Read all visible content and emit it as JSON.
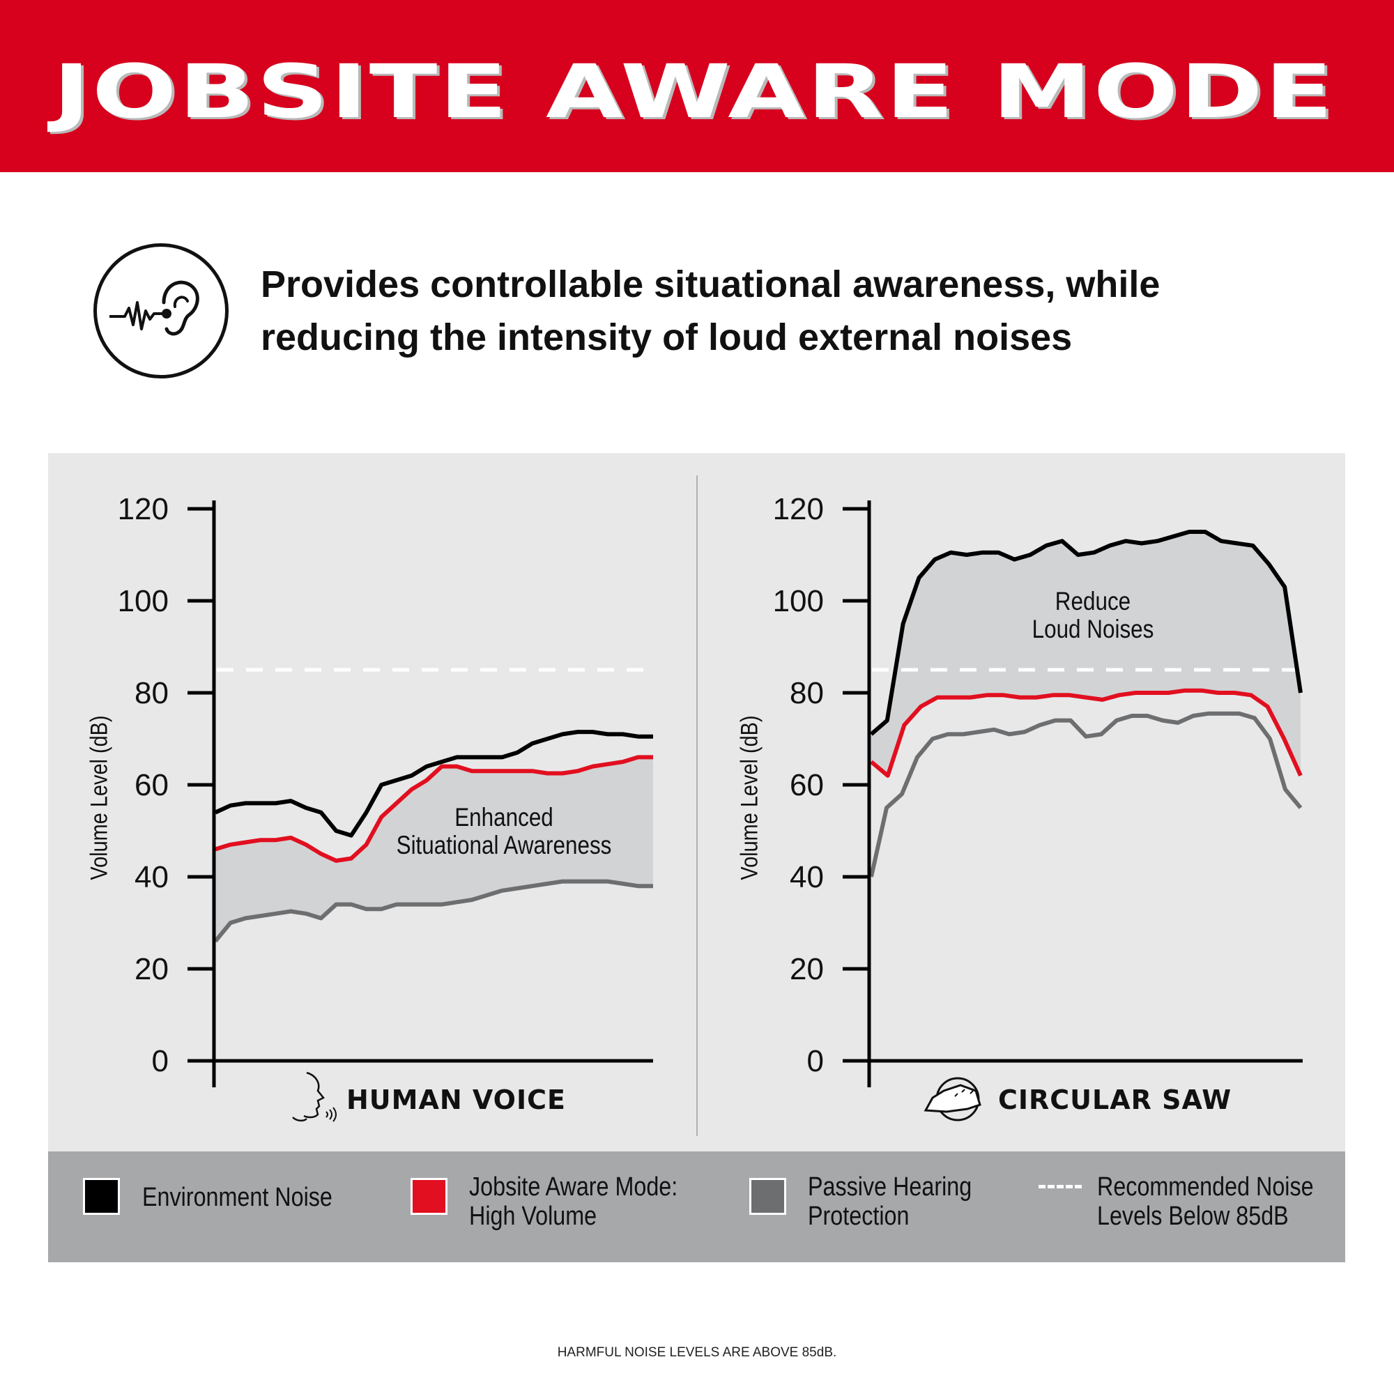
{
  "header": {
    "title": "JOBSITE AWARE MODE",
    "background": "#d7001d"
  },
  "intro": {
    "icon": "ear-sound-wave-icon",
    "lines": [
      "Provides controllable situational awareness, while",
      "reducing the intensity of loud external noises"
    ]
  },
  "chart_data": [
    {
      "type": "line",
      "category_label": "HUMAN VOICE",
      "category_icon": "talking-face-icon",
      "ylabel": "Volume Level (dB)",
      "ylim": [
        0,
        120
      ],
      "yticks": [
        "0",
        "20",
        "40",
        "60",
        "80",
        "100",
        "120"
      ],
      "annotation": [
        "Enhanced",
        "Situational Awareness"
      ],
      "shaded_between": [
        "Jobsite Aware Mode: High Volume",
        "Passive Hearing Protection"
      ],
      "threshold": 85,
      "series": [
        {
          "name": "Environment Noise",
          "color": "#000000",
          "values": [
            54,
            55.5,
            56,
            56,
            56,
            56.5,
            55,
            54,
            50,
            49,
            54,
            60,
            61,
            62,
            64,
            65,
            66,
            66,
            66,
            66,
            67,
            69,
            70,
            71,
            71.5,
            71.5,
            71,
            71,
            70.5,
            70.5
          ]
        },
        {
          "name": "Jobsite Aware Mode: High Volume",
          "color": "#e10f1f",
          "values": [
            46,
            47,
            47.5,
            48,
            48,
            48.5,
            47,
            45,
            43.5,
            44,
            47,
            53,
            56,
            59,
            61,
            64,
            64,
            63,
            63,
            63,
            63,
            63,
            62.5,
            62.5,
            63,
            64,
            64.5,
            65,
            66,
            66
          ]
        },
        {
          "name": "Passive Hearing Protection",
          "color": "#6d6e70",
          "values": [
            26,
            30,
            31,
            31.5,
            32,
            32.5,
            32,
            31,
            34,
            34,
            33,
            33,
            34,
            34,
            34,
            34,
            34.5,
            35,
            36,
            37,
            37.5,
            38,
            38.5,
            39,
            39,
            39,
            39,
            38.5,
            38,
            38
          ]
        }
      ]
    },
    {
      "type": "line",
      "category_label": "CIRCULAR SAW",
      "category_icon": "circular-saw-icon",
      "ylabel": "Volume Level (dB)",
      "ylim": [
        0,
        120
      ],
      "yticks": [
        "0",
        "20",
        "40",
        "60",
        "80",
        "100",
        "120"
      ],
      "annotation": [
        "Reduce",
        "Loud Noises"
      ],
      "shaded_between": [
        "Environment Noise",
        "Jobsite Aware Mode: High Volume"
      ],
      "threshold": 85,
      "series": [
        {
          "name": "Environment Noise",
          "color": "#000000",
          "values": [
            71,
            74,
            95,
            105,
            109,
            110.5,
            110,
            110.5,
            110.5,
            109,
            110,
            112,
            113,
            110,
            110.5,
            112,
            113,
            112.5,
            113,
            114,
            115,
            115,
            113,
            112.5,
            112,
            108,
            103,
            80
          ]
        },
        {
          "name": "Jobsite Aware Mode: High Volume",
          "color": "#e10f1f",
          "values": [
            65,
            62,
            73,
            77,
            79,
            79,
            79,
            79.5,
            79.5,
            79,
            79,
            79.5,
            79.5,
            79,
            78.5,
            79.5,
            80,
            80,
            80,
            80.5,
            80.5,
            80,
            80,
            79.5,
            77,
            70,
            62
          ]
        },
        {
          "name": "Passive Hearing Protection",
          "color": "#6d6e70",
          "values": [
            40,
            55,
            58,
            66,
            70,
            71,
            71,
            71.5,
            72,
            71,
            71.5,
            73,
            74,
            74,
            70.5,
            71,
            74,
            75,
            75,
            74,
            73.5,
            75,
            75.5,
            75.5,
            75.5,
            74.5,
            70,
            59,
            55
          ]
        }
      ]
    }
  ],
  "legend": [
    {
      "label": [
        "Environment Noise"
      ],
      "color": "#000000"
    },
    {
      "label": [
        "Jobsite Aware Mode:",
        "High Volume"
      ],
      "color": "#e10f1f"
    },
    {
      "label": [
        "Passive Hearing",
        "Protection"
      ],
      "color": "#6d6e70"
    },
    {
      "label": [
        "Recommended Noise",
        "Levels Below 85dB"
      ],
      "color": "#ffffff",
      "style": "dashed"
    }
  ],
  "footer": "HARMFUL NOISE LEVELS ARE ABOVE 85dB."
}
